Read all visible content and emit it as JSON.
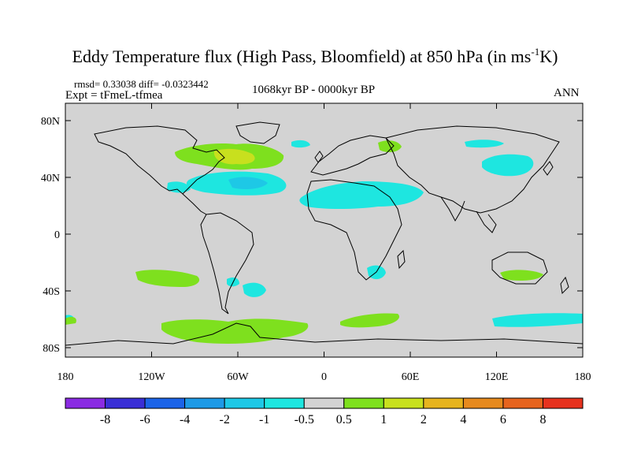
{
  "title": {
    "main": "Eddy Temperature flux (High Pass, Bloomfield) at 850 hPa (in ms",
    "sup": "-1",
    "end": "K)"
  },
  "stats": "rmsd= 0.33038 diff= -0.0323442",
  "experiment": "Expt = tFmeL-tfmea",
  "period": "1068kyr BP - 0000kyr BP",
  "season": "ANN",
  "lat_ticks": [
    "80N",
    "40N",
    "0",
    "40S",
    "80S"
  ],
  "lon_ticks": [
    "180",
    "120W",
    "60W",
    "0",
    "60E",
    "120E",
    "180"
  ],
  "colorbar": {
    "colors": [
      "#8a2be2",
      "#3a2fd6",
      "#1c64e8",
      "#1e9ae6",
      "#1ec8e6",
      "#1ee6e0",
      "#d3d3d3",
      "#7ee01e",
      "#c8e01e",
      "#e6b41e",
      "#e68a1e",
      "#e6641e",
      "#e6321e"
    ],
    "labels": [
      "-8",
      "-6",
      "-4",
      "-2",
      "-1",
      "-0.5",
      "0.5",
      "1",
      "2",
      "4",
      "6",
      "8"
    ]
  },
  "map_colors": {
    "background": "#d3d3d3",
    "positive": "#7ee01e",
    "positive_strong": "#c8e01e",
    "negative": "#1ee6e0",
    "negative_strong": "#1ec8e6"
  }
}
